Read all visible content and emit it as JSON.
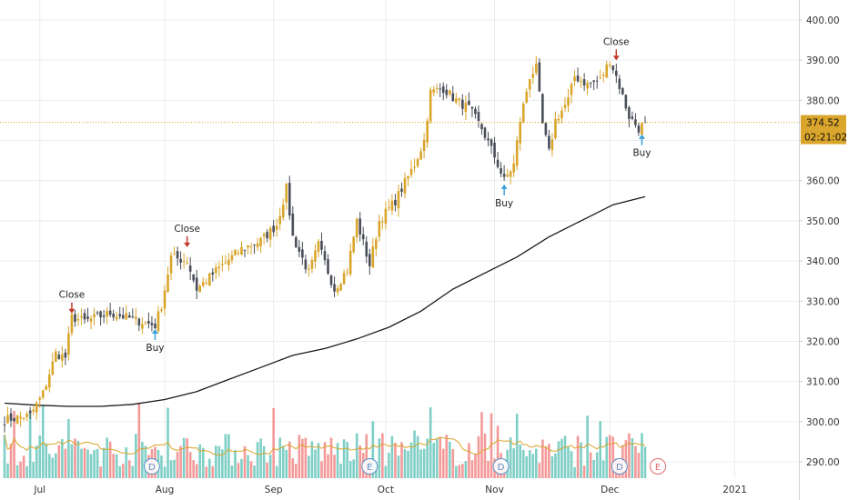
{
  "chart_data": {
    "type": "candlestick",
    "price_axis": {
      "ticks": [
        "290.00",
        "300.00",
        "310.00",
        "320.00",
        "330.00",
        "340.00",
        "350.00",
        "360.00",
        "370.00",
        "380.00",
        "390.00",
        "400.00"
      ],
      "range": [
        286,
        404
      ],
      "last_price_label": "374.52",
      "last_price": 374.52,
      "countdown_label": "02:21:02",
      "grid": true
    },
    "time_axis": {
      "labels": [
        "Jul",
        "Aug",
        "Sep",
        "Oct",
        "Nov",
        "Dec",
        "2021"
      ]
    },
    "moving_average": [
      {
        "t": 0,
        "v": 304.6
      },
      {
        "t": 10,
        "v": 304.1
      },
      {
        "t": 20,
        "v": 303.8
      },
      {
        "t": 30,
        "v": 303.8
      },
      {
        "t": 40,
        "v": 304.3
      },
      {
        "t": 50,
        "v": 305.5
      },
      {
        "t": 60,
        "v": 307.5
      },
      {
        "t": 70,
        "v": 310.5
      },
      {
        "t": 80,
        "v": 313.5
      },
      {
        "t": 90,
        "v": 316.5
      },
      {
        "t": 100,
        "v": 318.2
      },
      {
        "t": 110,
        "v": 320.6
      },
      {
        "t": 120,
        "v": 323.5
      },
      {
        "t": 130,
        "v": 327.5
      },
      {
        "t": 140,
        "v": 333.0
      },
      {
        "t": 150,
        "v": 337.0
      },
      {
        "t": 160,
        "v": 341.0
      },
      {
        "t": 170,
        "v": 346.0
      },
      {
        "t": 180,
        "v": 350.0
      },
      {
        "t": 190,
        "v": 354.0
      },
      {
        "t": 200,
        "v": 356.0
      }
    ],
    "anchors": [
      {
        "t": 0,
        "p": 300.5
      },
      {
        "t": 8,
        "p": 301.5
      },
      {
        "t": 12,
        "p": 307
      },
      {
        "t": 16,
        "p": 317
      },
      {
        "t": 19,
        "p": 316
      },
      {
        "t": 21,
        "p": 326
      },
      {
        "t": 25,
        "p": 325
      },
      {
        "t": 29,
        "p": 326
      },
      {
        "t": 33,
        "p": 327
      },
      {
        "t": 38,
        "p": 326
      },
      {
        "t": 42,
        "p": 325
      },
      {
        "t": 47,
        "p": 324
      },
      {
        "t": 49,
        "p": 329
      },
      {
        "t": 52,
        "p": 341
      },
      {
        "t": 57,
        "p": 340
      },
      {
        "t": 60,
        "p": 333
      },
      {
        "t": 64,
        "p": 336
      },
      {
        "t": 68,
        "p": 339
      },
      {
        "t": 74,
        "p": 343
      },
      {
        "t": 80,
        "p": 345
      },
      {
        "t": 85,
        "p": 349
      },
      {
        "t": 88,
        "p": 358
      },
      {
        "t": 90,
        "p": 346
      },
      {
        "t": 95,
        "p": 337
      },
      {
        "t": 98,
        "p": 344
      },
      {
        "t": 103,
        "p": 333
      },
      {
        "t": 107,
        "p": 338
      },
      {
        "t": 110,
        "p": 350
      },
      {
        "t": 114,
        "p": 339
      },
      {
        "t": 117,
        "p": 350
      },
      {
        "t": 122,
        "p": 355
      },
      {
        "t": 128,
        "p": 364
      },
      {
        "t": 131,
        "p": 370
      },
      {
        "t": 133,
        "p": 382
      },
      {
        "t": 137,
        "p": 383
      },
      {
        "t": 141,
        "p": 380
      },
      {
        "t": 145,
        "p": 378
      },
      {
        "t": 149,
        "p": 373
      },
      {
        "t": 153,
        "p": 366
      },
      {
        "t": 156,
        "p": 360
      },
      {
        "t": 159,
        "p": 364
      },
      {
        "t": 161,
        "p": 375
      },
      {
        "t": 164,
        "p": 386
      },
      {
        "t": 166,
        "p": 388
      },
      {
        "t": 168,
        "p": 374
      },
      {
        "t": 170,
        "p": 367
      },
      {
        "t": 172,
        "p": 375
      },
      {
        "t": 176,
        "p": 380
      },
      {
        "t": 178,
        "p": 386
      },
      {
        "t": 182,
        "p": 384
      },
      {
        "t": 186,
        "p": 385
      },
      {
        "t": 189,
        "p": 390
      },
      {
        "t": 191,
        "p": 386
      },
      {
        "t": 193,
        "p": 381
      },
      {
        "t": 195,
        "p": 376
      },
      {
        "t": 198,
        "p": 373
      },
      {
        "t": 200,
        "p": 374.5
      }
    ],
    "volume": {
      "ma_color": "#d9a52a",
      "up_color": "#7fcfc6",
      "down_color": "#f39a99"
    },
    "signals": [
      {
        "label": "Close",
        "t": 21,
        "p": 326.5,
        "side": "above"
      },
      {
        "label": "Buy",
        "t": 47,
        "p": 323.5,
        "side": "below"
      },
      {
        "label": "Close",
        "t": 57,
        "p": 343,
        "side": "above"
      },
      {
        "label": "Buy",
        "t": 156,
        "p": 359.5,
        "side": "below"
      },
      {
        "label": "Close",
        "t": 191,
        "p": 389.5,
        "side": "above"
      },
      {
        "label": "Buy",
        "t": 199,
        "p": 372,
        "side": "below"
      }
    ],
    "event_markers": [
      {
        "t": 46,
        "letter": "D"
      },
      {
        "t": 114,
        "letter": "E"
      },
      {
        "t": 155,
        "letter": "D"
      },
      {
        "t": 192,
        "letter": "D"
      },
      {
        "t": 204,
        "letter": "E",
        "future": true
      }
    ],
    "colors": {
      "up": "#d9a52a",
      "down": "#4a4e59",
      "ma": "#1a1a1a",
      "buy": "#3a9ed8",
      "close": "#c0392b",
      "last_price_bg": "#d9a52a",
      "grid": "#e9ecef"
    }
  }
}
